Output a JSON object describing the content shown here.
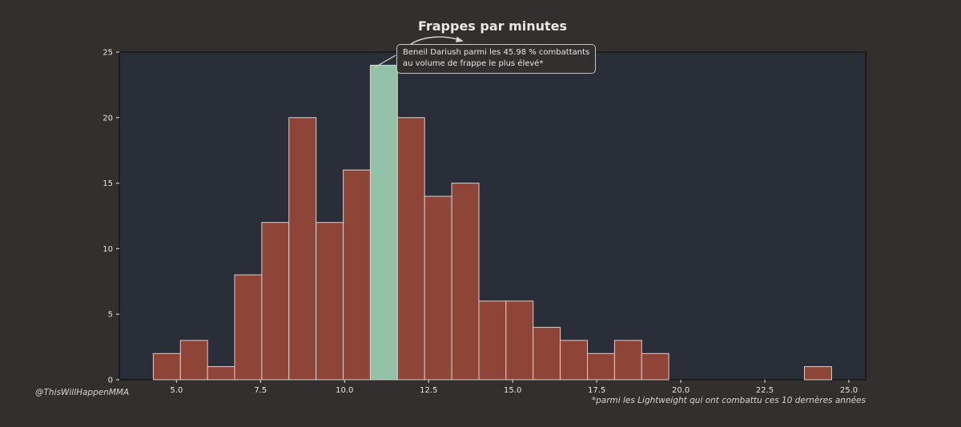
{
  "figure": {
    "title": "Frappes par minutes",
    "watermark": "@ThisWillHappenMMA",
    "footnote": "*parmi les Lightweight qui ont combattu ces 10 dernères années",
    "annotation": {
      "line1": "Beneil Dariush parmi les 45.98 % combattants",
      "line2": "au volume de frappe le plus élevé*"
    },
    "colors": {
      "background": "#332f2e",
      "plot_background": "#2a2e38",
      "bar": "#8e4437",
      "bar_highlight": "#93c2a9",
      "bar_edge": "#d7d2cc",
      "spine": "#1d1c1b",
      "tick": "#ccc8c2",
      "text": "#e9e5e0",
      "arrow": "#dad6d1"
    }
  },
  "chart_data": {
    "type": "bar",
    "subtype": "histogram",
    "title": "Frappes par minutes",
    "xlabel": "",
    "ylabel": "",
    "bin_start": 4.31,
    "bin_width": 0.807,
    "counts": [
      2,
      3,
      1,
      8,
      12,
      20,
      12,
      16,
      24,
      20,
      14,
      15,
      6,
      6,
      4,
      3,
      2,
      3,
      2,
      0,
      0,
      0,
      0,
      0,
      1
    ],
    "highlight_bin_index": 8,
    "highlight_fighter": "Beneil Dariush",
    "highlight_percent": "45.98 %",
    "annotations": [
      "Beneil Dariush parmi les 45.98 % combattants au volume de frappe le plus élevé*"
    ],
    "xlim": [
      3.3,
      25.5
    ],
    "ylim": [
      0,
      25
    ],
    "xticks": [
      5.0,
      7.5,
      10.0,
      12.5,
      15.0,
      17.5,
      20.0,
      22.5,
      25.0
    ],
    "xtick_labels": [
      "5.0",
      "7.5",
      "10.0",
      "12.5",
      "15.0",
      "17.5",
      "20.0",
      "22.5",
      "25.0"
    ],
    "yticks": [
      0,
      5,
      10,
      15,
      20,
      25
    ],
    "ytick_labels": [
      "0",
      "5",
      "10",
      "15",
      "20",
      "25"
    ],
    "grid": false,
    "legend": null
  }
}
